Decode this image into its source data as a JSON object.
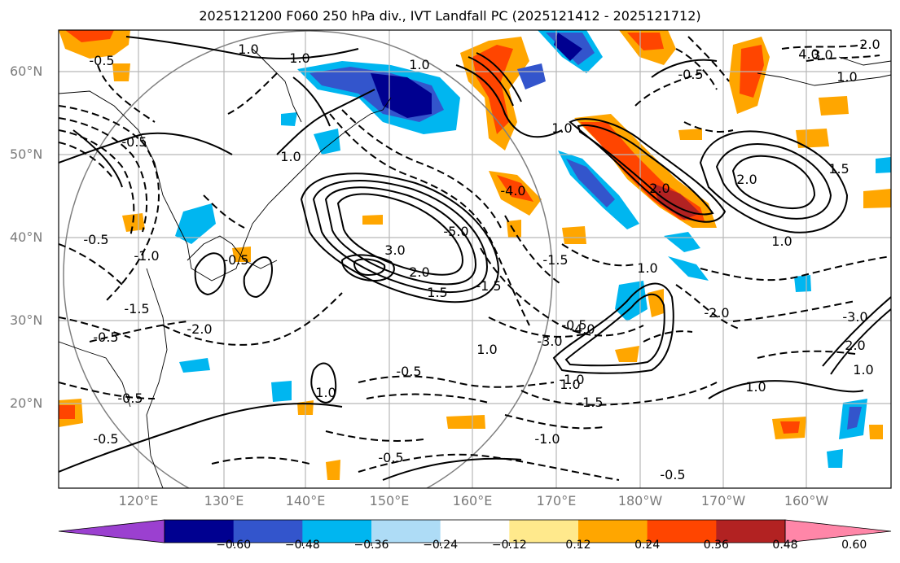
{
  "title": "2025121200 F060 250 hPa div., IVT Landfall PC (2025121412 - 2025121712)",
  "map": {
    "lat_labels": [
      "60°N",
      "50°N",
      "40°N",
      "30°N",
      "20°N"
    ],
    "lon_labels": [
      "120°E",
      "130°E",
      "140°E",
      "150°E",
      "160°E",
      "170°E",
      "180°W",
      "170°W",
      "160°W"
    ],
    "contour_labels_solid": [
      "1.0",
      "1.0",
      "1.0",
      "1.0",
      "2.0",
      "3.0",
      "2.0",
      "1.5",
      "1.0",
      "1.5",
      "2.0",
      "1.0",
      "1.0",
      "1.0",
      "1.0",
      "1.0",
      "2.0",
      "1.0",
      "3.0",
      "4.0",
      "1.0",
      "1.0",
      "2.0"
    ],
    "contour_labels_dashed": [
      "-0.5",
      "-0.5",
      "-0.5",
      "-0.5",
      "-0.5",
      "-1.5",
      "-2.0",
      "-1.0",
      "-1.5",
      "-1.0",
      "-0.5",
      "-0.5",
      "-3.0",
      "-4.0",
      "-1.0",
      "-1.5",
      "-0.5",
      "-0.5",
      "-0.5",
      "-0.5",
      "-0.5",
      "-4.0",
      "-5.0",
      "-1.5",
      "-2.0",
      "-3.0"
    ]
  },
  "colorbar": {
    "ticks": [
      "−0.60",
      "−0.48",
      "−0.36",
      "−0.24",
      "−0.12",
      "0.12",
      "0.24",
      "0.36",
      "0.48",
      "0.60"
    ],
    "colors": [
      "#9b40d0",
      "#000090",
      "#3355cc",
      "#00b6f0",
      "#aedcf6",
      "#ffffff",
      "#ffe98c",
      "#ffa600",
      "#ff4500",
      "#b22222",
      "#ff86a8"
    ]
  }
}
